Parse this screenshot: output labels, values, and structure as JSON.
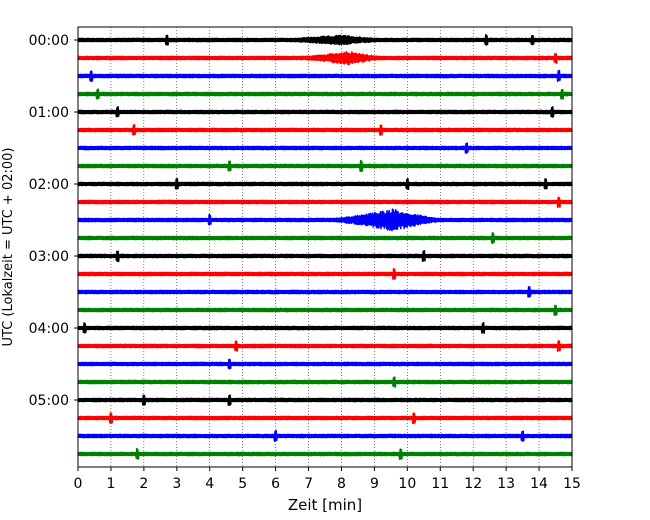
{
  "chart_data": {
    "type": "line",
    "title": "",
    "xlabel": "Zeit  [min]",
    "ylabel": "UTC (Lokalzeit = UTC + 02:00)",
    "xlim": [
      0,
      15
    ],
    "xticks": [
      0,
      1,
      2,
      3,
      4,
      5,
      6,
      7,
      8,
      9,
      10,
      11,
      12,
      13,
      14,
      15
    ],
    "grid_x": true,
    "grid_x_style": "dotted",
    "trace_interval_min": 15,
    "trace_count": 24,
    "hour_labels": [
      {
        "trace_index": 0,
        "text": "00:00"
      },
      {
        "trace_index": 4,
        "text": "01:00"
      },
      {
        "trace_index": 8,
        "text": "02:00"
      },
      {
        "trace_index": 12,
        "text": "03:00"
      },
      {
        "trace_index": 16,
        "text": "04:00"
      },
      {
        "trace_index": 20,
        "text": "05:00"
      }
    ],
    "trace_colors": [
      "#000000",
      "#ff0000",
      "#0000ff",
      "#008000"
    ],
    "events": [
      {
        "trace_index": 0,
        "start_min": 5.0,
        "peak_min": 8.0,
        "end_min": 10.2,
        "peak_amplitude": 0.55
      },
      {
        "trace_index": 1,
        "start_min": 6.0,
        "peak_min": 8.2,
        "end_min": 9.8,
        "peak_amplitude": 0.75
      },
      {
        "trace_index": 10,
        "start_min": 7.0,
        "peak_min": 9.6,
        "end_min": 11.5,
        "peak_amplitude": 1.25
      }
    ],
    "spikes": [
      {
        "trace_index": 0,
        "minute": 2.7
      },
      {
        "trace_index": 0,
        "minute": 12.4
      },
      {
        "trace_index": 0,
        "minute": 13.8
      },
      {
        "trace_index": 1,
        "minute": 14.5
      },
      {
        "trace_index": 2,
        "minute": 0.4
      },
      {
        "trace_index": 2,
        "minute": 14.6
      },
      {
        "trace_index": 3,
        "minute": 0.6
      },
      {
        "trace_index": 3,
        "minute": 14.7
      },
      {
        "trace_index": 4,
        "minute": 1.2
      },
      {
        "trace_index": 4,
        "minute": 14.4
      },
      {
        "trace_index": 5,
        "minute": 1.7
      },
      {
        "trace_index": 5,
        "minute": 9.2
      },
      {
        "trace_index": 6,
        "minute": 11.8
      },
      {
        "trace_index": 7,
        "minute": 4.6
      },
      {
        "trace_index": 7,
        "minute": 8.6
      },
      {
        "trace_index": 8,
        "minute": 3.0
      },
      {
        "trace_index": 8,
        "minute": 10.0
      },
      {
        "trace_index": 8,
        "minute": 14.2
      },
      {
        "trace_index": 9,
        "minute": 14.6
      },
      {
        "trace_index": 10,
        "minute": 4.0
      },
      {
        "trace_index": 11,
        "minute": 12.6
      },
      {
        "trace_index": 12,
        "minute": 1.2
      },
      {
        "trace_index": 12,
        "minute": 10.5
      },
      {
        "trace_index": 13,
        "minute": 9.6
      },
      {
        "trace_index": 14,
        "minute": 13.7
      },
      {
        "trace_index": 15,
        "minute": 14.5
      },
      {
        "trace_index": 16,
        "minute": 0.2
      },
      {
        "trace_index": 16,
        "minute": 12.3
      },
      {
        "trace_index": 17,
        "minute": 4.8
      },
      {
        "trace_index": 17,
        "minute": 14.6
      },
      {
        "trace_index": 18,
        "minute": 4.6
      },
      {
        "trace_index": 19,
        "minute": 9.6
      },
      {
        "trace_index": 20,
        "minute": 2.0
      },
      {
        "trace_index": 20,
        "minute": 4.6
      },
      {
        "trace_index": 21,
        "minute": 1.0
      },
      {
        "trace_index": 21,
        "minute": 10.2
      },
      {
        "trace_index": 22,
        "minute": 6.0
      },
      {
        "trace_index": 22,
        "minute": 13.5
      },
      {
        "trace_index": 23,
        "minute": 1.8
      },
      {
        "trace_index": 23,
        "minute": 9.8
      }
    ]
  }
}
